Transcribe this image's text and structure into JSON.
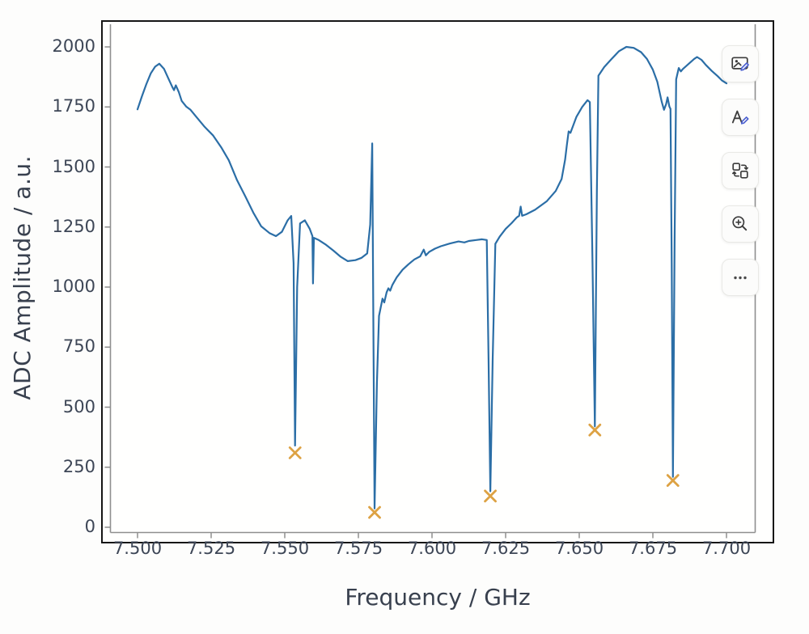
{
  "figure": {
    "ylabel": "ADC Amplitude / a.u.",
    "xlabel": "Frequency / GHz",
    "x_tick_labels": [
      "7.500",
      "7.525",
      "7.550",
      "7.575",
      "7.600",
      "7.625",
      "7.650",
      "7.675",
      "7.700"
    ],
    "y_tick_labels": [
      "0",
      "250",
      "500",
      "750",
      "1000",
      "1250",
      "1500",
      "1750",
      "2000"
    ]
  },
  "toolbar": {
    "buttons": [
      {
        "id": "edit-image",
        "icon": "image-edit-icon"
      },
      {
        "id": "alt-text",
        "icon": "letter-a-edit-icon"
      },
      {
        "id": "convert",
        "icon": "swap-shapes-icon"
      },
      {
        "id": "zoom-in",
        "icon": "magnifier-plus-icon"
      },
      {
        "id": "more-options",
        "icon": "ellipsis-icon"
      }
    ]
  },
  "colors": {
    "trace": "#2b6ea6",
    "marker": "#dda243",
    "spine": "#8f8f8f",
    "frame": "#161616",
    "text": "#38404e",
    "icon": "#3d3d3d",
    "pencil_accent": "#4a5fd0"
  },
  "chart_data": {
    "type": "line",
    "title": "",
    "xlabel": "Frequency / GHz",
    "ylabel": "ADC Amplitude / a.u.",
    "xlim": [
      7.491,
      7.71
    ],
    "ylim": [
      -30,
      2095
    ],
    "x_tick_values": [
      7.5,
      7.525,
      7.55,
      7.575,
      7.6,
      7.625,
      7.65,
      7.675,
      7.7
    ],
    "y_tick_values": [
      0,
      250,
      500,
      750,
      1000,
      1250,
      1500,
      1750,
      2000
    ],
    "grid": false,
    "legend": null,
    "series": [
      {
        "name": "adc-amplitude-trace",
        "type": "line",
        "color": "#2b6ea6",
        "points": [
          [
            7.5,
            1740
          ],
          [
            7.5015,
            1795
          ],
          [
            7.503,
            1845
          ],
          [
            7.5045,
            1890
          ],
          [
            7.506,
            1918
          ],
          [
            7.5074,
            1930
          ],
          [
            7.509,
            1908
          ],
          [
            7.5105,
            1868
          ],
          [
            7.5118,
            1833
          ],
          [
            7.5124,
            1820
          ],
          [
            7.513,
            1840
          ],
          [
            7.514,
            1812
          ],
          [
            7.515,
            1775
          ],
          [
            7.5165,
            1752
          ],
          [
            7.518,
            1738
          ],
          [
            7.52,
            1708
          ],
          [
            7.5228,
            1667
          ],
          [
            7.5256,
            1632
          ],
          [
            7.5284,
            1582
          ],
          [
            7.531,
            1528
          ],
          [
            7.5338,
            1445
          ],
          [
            7.5366,
            1378
          ],
          [
            7.5393,
            1310
          ],
          [
            7.542,
            1253
          ],
          [
            7.5448,
            1225
          ],
          [
            7.547,
            1212
          ],
          [
            7.549,
            1230
          ],
          [
            7.551,
            1278
          ],
          [
            7.5522,
            1296
          ],
          [
            7.553,
            1100
          ],
          [
            7.5535,
            340
          ],
          [
            7.5542,
            1000
          ],
          [
            7.5552,
            1265
          ],
          [
            7.5568,
            1278
          ],
          [
            7.5585,
            1242
          ],
          [
            7.5594,
            1212
          ],
          [
            7.5596,
            1015
          ],
          [
            7.5599,
            1205
          ],
          [
            7.5615,
            1196
          ],
          [
            7.564,
            1176
          ],
          [
            7.5665,
            1152
          ],
          [
            7.569,
            1126
          ],
          [
            7.5714,
            1108
          ],
          [
            7.574,
            1112
          ],
          [
            7.5761,
            1122
          ],
          [
            7.578,
            1140
          ],
          [
            7.579,
            1260
          ],
          [
            7.5797,
            1598
          ],
          [
            7.5801,
            800
          ],
          [
            7.5805,
            78
          ],
          [
            7.5813,
            600
          ],
          [
            7.582,
            880
          ],
          [
            7.5832,
            952
          ],
          [
            7.5838,
            936
          ],
          [
            7.5846,
            978
          ],
          [
            7.5852,
            995
          ],
          [
            7.5858,
            985
          ],
          [
            7.5865,
            1008
          ],
          [
            7.588,
            1040
          ],
          [
            7.59,
            1072
          ],
          [
            7.592,
            1095
          ],
          [
            7.594,
            1115
          ],
          [
            7.596,
            1128
          ],
          [
            7.5972,
            1156
          ],
          [
            7.5979,
            1132
          ],
          [
            7.599,
            1146
          ],
          [
            7.601,
            1160
          ],
          [
            7.603,
            1170
          ],
          [
            7.606,
            1181
          ],
          [
            7.609,
            1190
          ],
          [
            7.611,
            1186
          ],
          [
            7.6125,
            1192
          ],
          [
            7.615,
            1196
          ],
          [
            7.617,
            1199
          ],
          [
            7.6186,
            1196
          ],
          [
            7.6192,
            700
          ],
          [
            7.6198,
            150
          ],
          [
            7.6206,
            700
          ],
          [
            7.6215,
            1180
          ],
          [
            7.623,
            1210
          ],
          [
            7.625,
            1242
          ],
          [
            7.627,
            1266
          ],
          [
            7.6288,
            1290
          ],
          [
            7.6296,
            1297
          ],
          [
            7.6301,
            1335
          ],
          [
            7.6306,
            1297
          ],
          [
            7.632,
            1303
          ],
          [
            7.635,
            1322
          ],
          [
            7.639,
            1358
          ],
          [
            7.642,
            1400
          ],
          [
            7.644,
            1450
          ],
          [
            7.6452,
            1530
          ],
          [
            7.6458,
            1592
          ],
          [
            7.6464,
            1648
          ],
          [
            7.647,
            1642
          ],
          [
            7.6478,
            1668
          ],
          [
            7.649,
            1708
          ],
          [
            7.651,
            1750
          ],
          [
            7.6528,
            1778
          ],
          [
            7.6536,
            1770
          ],
          [
            7.6545,
            1100
          ],
          [
            7.6553,
            420
          ],
          [
            7.656,
            1400
          ],
          [
            7.6565,
            1880
          ],
          [
            7.6585,
            1916
          ],
          [
            7.661,
            1950
          ],
          [
            7.6635,
            1982
          ],
          [
            7.666,
            2000
          ],
          [
            7.6685,
            1996
          ],
          [
            7.671,
            1978
          ],
          [
            7.673,
            1950
          ],
          [
            7.675,
            1905
          ],
          [
            7.6765,
            1855
          ],
          [
            7.678,
            1772
          ],
          [
            7.6788,
            1738
          ],
          [
            7.6795,
            1762
          ],
          [
            7.68,
            1790
          ],
          [
            7.6806,
            1752
          ],
          [
            7.681,
            1742
          ],
          [
            7.6814,
            1100
          ],
          [
            7.6818,
            210
          ],
          [
            7.6824,
            1200
          ],
          [
            7.6829,
            1865
          ],
          [
            7.6838,
            1912
          ],
          [
            7.6845,
            1898
          ],
          [
            7.6852,
            1908
          ],
          [
            7.687,
            1928
          ],
          [
            7.689,
            1950
          ],
          [
            7.69,
            1958
          ],
          [
            7.6915,
            1946
          ],
          [
            7.693,
            1925
          ],
          [
            7.695,
            1900
          ],
          [
            7.697,
            1878
          ],
          [
            7.6985,
            1860
          ],
          [
            7.7,
            1848
          ]
        ]
      },
      {
        "name": "resonance-dip-markers",
        "type": "scatter",
        "marker": "x",
        "color": "#dda243",
        "points": [
          [
            7.5535,
            310
          ],
          [
            7.5805,
            62
          ],
          [
            7.6198,
            130
          ],
          [
            7.6553,
            405
          ],
          [
            7.6818,
            195
          ]
        ]
      }
    ]
  }
}
